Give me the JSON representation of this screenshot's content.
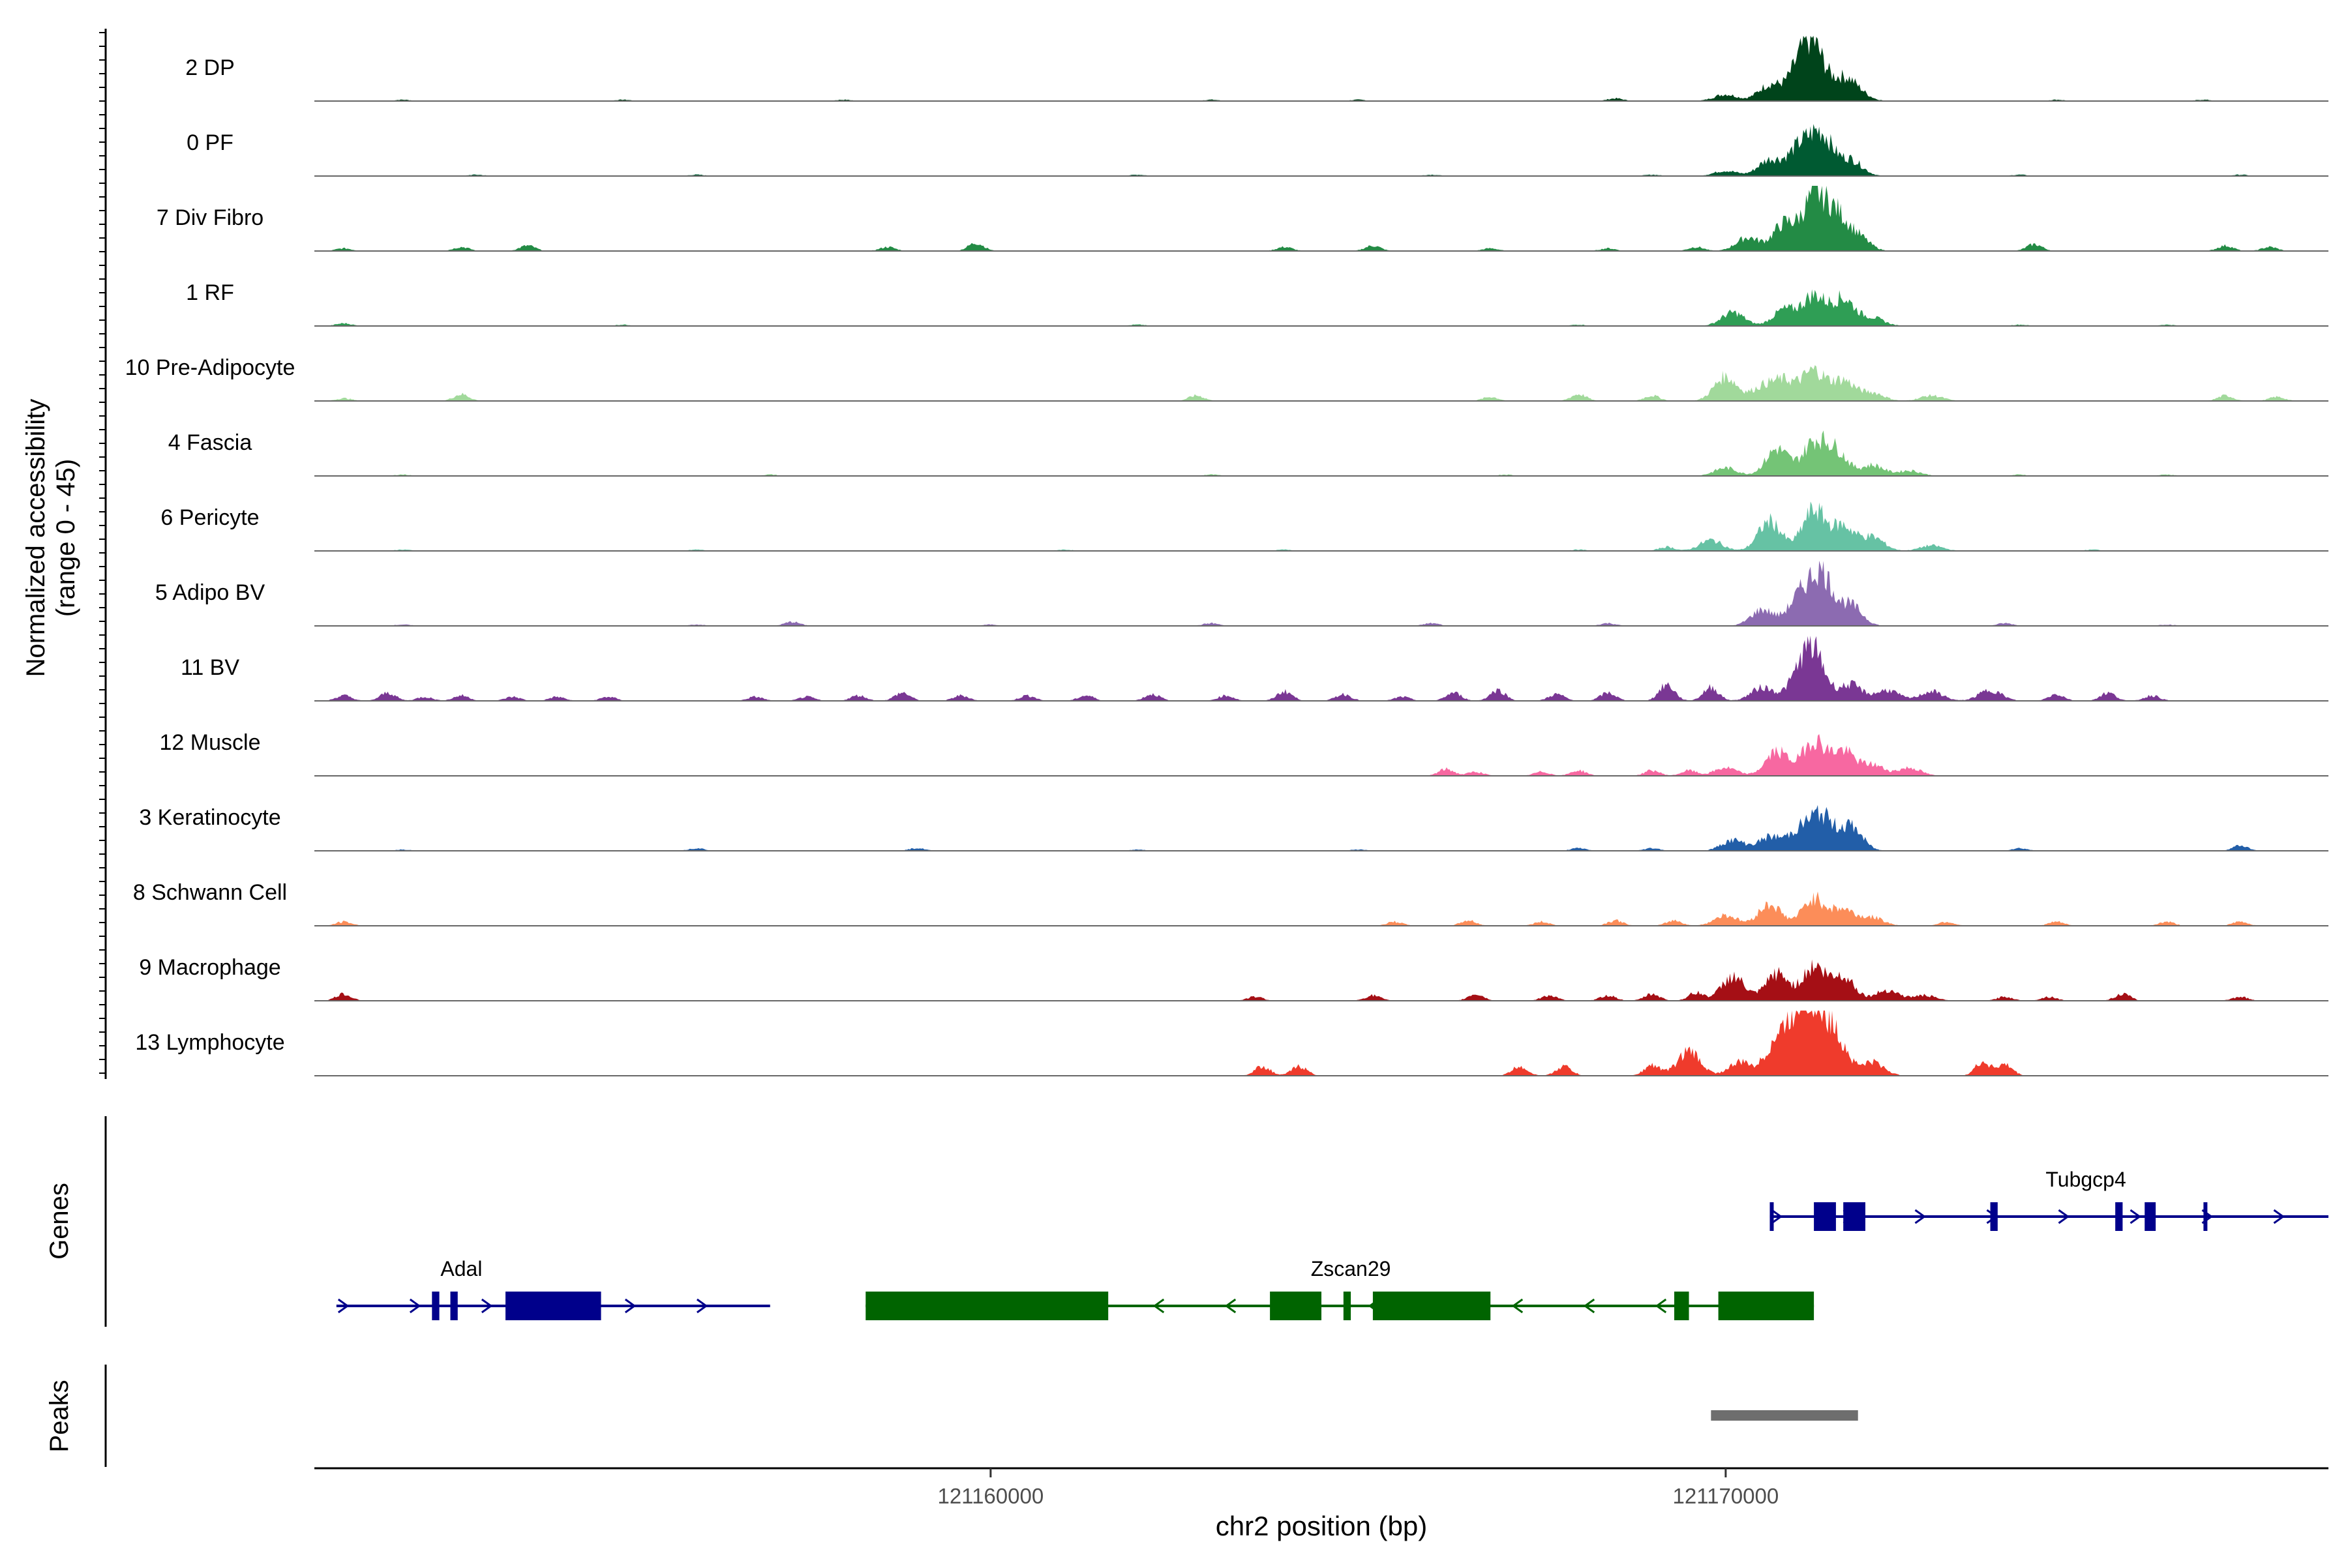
{
  "chart_data": {
    "type": "area",
    "title": "",
    "ylabel_line1": "Normalized accessibility",
    "ylabel_line2": "(range 0 - 45)",
    "ylim": [
      0,
      45
    ],
    "xlabel": "chr2 position (bp)",
    "xlim": [
      121150800,
      121178200
    ],
    "x_ticks": [
      {
        "value": 121160000,
        "label": "121160000"
      },
      {
        "value": 121170000,
        "label": "121170000"
      }
    ],
    "tracks": [
      {
        "name": "2 DP",
        "color": "#00441b",
        "peaks": [
          [
            121170000,
            5
          ],
          [
            121170600,
            12
          ],
          [
            121171000,
            20
          ],
          [
            121171200,
            35
          ],
          [
            121171600,
            15
          ],
          [
            121171800,
            5
          ]
        ],
        "noise": [
          [
            121152000,
            1
          ],
          [
            121155000,
            1
          ],
          [
            121158000,
            1
          ],
          [
            121163000,
            1
          ],
          [
            121165000,
            1
          ],
          [
            121168500,
            2
          ],
          [
            121174500,
            1
          ],
          [
            121176500,
            1
          ]
        ]
      },
      {
        "name": "0 PF",
        "color": "#005a32",
        "peaks": [
          [
            121170000,
            4
          ],
          [
            121170600,
            12
          ],
          [
            121171000,
            20
          ],
          [
            121171300,
            30
          ],
          [
            121171700,
            12
          ]
        ],
        "noise": [
          [
            121153000,
            1
          ],
          [
            121156000,
            1
          ],
          [
            121162000,
            1
          ],
          [
            121166000,
            1
          ],
          [
            121169000,
            1
          ],
          [
            121174000,
            1
          ],
          [
            121177000,
            1
          ]
        ]
      },
      {
        "name": "7 Div Fibro",
        "color": "#238b45",
        "peaks": [
          [
            121170300,
            10
          ],
          [
            121170800,
            20
          ],
          [
            121171200,
            38
          ],
          [
            121171500,
            25
          ],
          [
            121171800,
            10
          ]
        ],
        "noise": [
          [
            121151200,
            2
          ],
          [
            121152800,
            3
          ],
          [
            121153700,
            4
          ],
          [
            121158600,
            3
          ],
          [
            121159800,
            6
          ],
          [
            121164000,
            3
          ],
          [
            121165200,
            4
          ],
          [
            121166800,
            2
          ],
          [
            121168400,
            2
          ],
          [
            121169600,
            3
          ],
          [
            121174200,
            5
          ],
          [
            121176800,
            4
          ],
          [
            121177400,
            3
          ]
        ]
      },
      {
        "name": "1 RF",
        "color": "#2f9e55",
        "peaks": [
          [
            121170100,
            10
          ],
          [
            121170800,
            12
          ],
          [
            121171200,
            22
          ],
          [
            121171600,
            20
          ],
          [
            121172000,
            6
          ]
        ],
        "noise": [
          [
            121151200,
            2
          ],
          [
            121155000,
            1
          ],
          [
            121162000,
            1
          ],
          [
            121168000,
            1
          ],
          [
            121174000,
            1
          ],
          [
            121176000,
            1
          ]
        ]
      },
      {
        "name": "10 Pre-Adipocyte",
        "color": "#a1d99b",
        "peaks": [
          [
            121170000,
            18
          ],
          [
            121170500,
            10
          ],
          [
            121170800,
            14
          ],
          [
            121171200,
            22
          ],
          [
            121171600,
            15
          ],
          [
            121172000,
            6
          ],
          [
            121172800,
            4
          ]
        ],
        "noise": [
          [
            121151200,
            2
          ],
          [
            121152800,
            5
          ],
          [
            121162800,
            4
          ],
          [
            121166800,
            3
          ],
          [
            121168000,
            5
          ],
          [
            121169000,
            4
          ],
          [
            121176800,
            4
          ],
          [
            121177500,
            3
          ]
        ]
      },
      {
        "name": "4 Fascia",
        "color": "#74c476",
        "peaks": [
          [
            121170000,
            6
          ],
          [
            121170700,
            20
          ],
          [
            121171200,
            24
          ],
          [
            121171500,
            18
          ],
          [
            121172000,
            8
          ],
          [
            121172500,
            4
          ]
        ],
        "noise": [
          [
            121152000,
            1
          ],
          [
            121157000,
            1
          ],
          [
            121163000,
            1
          ],
          [
            121167000,
            1
          ],
          [
            121174000,
            1
          ],
          [
            121176000,
            1
          ]
        ]
      },
      {
        "name": "6 Pericyte",
        "color": "#66c2a4",
        "peaks": [
          [
            121169800,
            8
          ],
          [
            121170600,
            22
          ],
          [
            121171200,
            30
          ],
          [
            121171600,
            18
          ],
          [
            121172000,
            10
          ],
          [
            121172800,
            4
          ]
        ],
        "noise": [
          [
            121152000,
            1
          ],
          [
            121156000,
            1
          ],
          [
            121161000,
            1
          ],
          [
            121164000,
            1
          ],
          [
            121168000,
            1
          ],
          [
            121169200,
            3
          ],
          [
            121175000,
            1
          ]
        ]
      },
      {
        "name": "5 Adipo BV",
        "color": "#8c6bb1",
        "peaks": [
          [
            121170500,
            12
          ],
          [
            121171000,
            20
          ],
          [
            121171300,
            38
          ],
          [
            121171700,
            15
          ]
        ],
        "noise": [
          [
            121152000,
            1
          ],
          [
            121156000,
            1
          ],
          [
            121157300,
            3
          ],
          [
            121160000,
            1
          ],
          [
            121163000,
            2
          ],
          [
            121166000,
            2
          ],
          [
            121168400,
            2
          ],
          [
            121173800,
            2
          ],
          [
            121176000,
            1
          ]
        ]
      },
      {
        "name": "11 BV",
        "color": "#7a3794",
        "peaks": [
          [
            121170500,
            10
          ],
          [
            121171000,
            15
          ],
          [
            121171200,
            33
          ],
          [
            121171700,
            12
          ],
          [
            121172200,
            8
          ],
          [
            121172800,
            7
          ],
          [
            121173600,
            8
          ]
        ],
        "noise": [
          [
            121151200,
            4
          ],
          [
            121151800,
            6
          ],
          [
            121152300,
            3
          ],
          [
            121152800,
            4
          ],
          [
            121153500,
            3
          ],
          [
            121154100,
            3
          ],
          [
            121154800,
            3
          ],
          [
            121156800,
            3
          ],
          [
            121157500,
            3
          ],
          [
            121158200,
            4
          ],
          [
            121158800,
            6
          ],
          [
            121159600,
            4
          ],
          [
            121160500,
            4
          ],
          [
            121161300,
            4
          ],
          [
            121162200,
            5
          ],
          [
            121163200,
            4
          ],
          [
            121164000,
            7
          ],
          [
            121164800,
            5
          ],
          [
            121165600,
            3
          ],
          [
            121166300,
            6
          ],
          [
            121166900,
            8
          ],
          [
            121167700,
            5
          ],
          [
            121168400,
            6
          ],
          [
            121169200,
            12
          ],
          [
            121169800,
            10
          ],
          [
            121174500,
            5
          ],
          [
            121175200,
            6
          ],
          [
            121175800,
            4
          ]
        ]
      },
      {
        "name": "12 Muscle",
        "color": "#f768a1",
        "peaks": [
          [
            121170000,
            6
          ],
          [
            121170700,
            18
          ],
          [
            121171200,
            26
          ],
          [
            121171600,
            18
          ],
          [
            121172000,
            8
          ],
          [
            121172500,
            6
          ]
        ],
        "noise": [
          [
            121166200,
            5
          ],
          [
            121166600,
            3
          ],
          [
            121167500,
            3
          ],
          [
            121168000,
            4
          ],
          [
            121169000,
            4
          ],
          [
            121169500,
            4
          ]
        ]
      },
      {
        "name": "3 Keratinocyte",
        "color": "#225ea8",
        "peaks": [
          [
            121170100,
            8
          ],
          [
            121170600,
            10
          ],
          [
            121171000,
            14
          ],
          [
            121171300,
            25
          ],
          [
            121171700,
            18
          ]
        ],
        "noise": [
          [
            121152000,
            1
          ],
          [
            121156000,
            2
          ],
          [
            121159000,
            2
          ],
          [
            121162000,
            1
          ],
          [
            121165000,
            1
          ],
          [
            121168000,
            2
          ],
          [
            121169000,
            2
          ],
          [
            121174000,
            2
          ],
          [
            121177000,
            4
          ]
        ]
      },
      {
        "name": "8 Schwann Cell",
        "color": "#fc8d59",
        "peaks": [
          [
            121170000,
            8
          ],
          [
            121170600,
            16
          ],
          [
            121171200,
            20
          ],
          [
            121171600,
            12
          ],
          [
            121172000,
            6
          ]
        ],
        "noise": [
          [
            121151200,
            3
          ],
          [
            121165500,
            3
          ],
          [
            121166500,
            4
          ],
          [
            121167500,
            3
          ],
          [
            121168500,
            4
          ],
          [
            121169300,
            4
          ],
          [
            121173000,
            3
          ],
          [
            121174500,
            3
          ],
          [
            121176000,
            3
          ],
          [
            121177000,
            3
          ]
        ]
      },
      {
        "name": "9 Macrophage",
        "color": "#a50f15",
        "peaks": [
          [
            121170100,
            18
          ],
          [
            121170700,
            20
          ],
          [
            121171200,
            25
          ],
          [
            121171600,
            18
          ],
          [
            121172200,
            8
          ],
          [
            121172700,
            4
          ]
        ],
        "noise": [
          [
            121151200,
            5
          ],
          [
            121163600,
            3
          ],
          [
            121165200,
            4
          ],
          [
            121166600,
            5
          ],
          [
            121167600,
            4
          ],
          [
            121168400,
            4
          ],
          [
            121169000,
            5
          ],
          [
            121169600,
            6
          ],
          [
            121173800,
            3
          ],
          [
            121174400,
            3
          ],
          [
            121175400,
            5
          ],
          [
            121177000,
            3
          ]
        ]
      },
      {
        "name": "13 Lymphocyte",
        "color": "#ef3b2c",
        "peaks": [
          [
            121169500,
            18
          ],
          [
            121170200,
            10
          ],
          [
            121170700,
            25
          ],
          [
            121171000,
            35
          ],
          [
            121171200,
            40
          ],
          [
            121171500,
            28
          ],
          [
            121172000,
            10
          ]
        ],
        "noise": [
          [
            121163700,
            7
          ],
          [
            121164200,
            7
          ],
          [
            121167200,
            7
          ],
          [
            121167800,
            7
          ],
          [
            121169000,
            8
          ],
          [
            121173500,
            10
          ],
          [
            121173800,
            8
          ]
        ]
      }
    ],
    "genes_label": "Genes",
    "peaks_label": "Peaks",
    "genes": [
      {
        "name": "Adal",
        "strand": "+",
        "color": "#00008b",
        "start": 121151100,
        "end": 121157000,
        "row": 2,
        "exons": [
          [
            121152400,
            121152500
          ],
          [
            121152650,
            121152750
          ],
          [
            121153400,
            121154700
          ]
        ]
      },
      {
        "name": "Zscan29",
        "strand": "-",
        "color": "#006400",
        "start": 121158300,
        "end": 121171200,
        "row": 2,
        "exons": [
          [
            121158300,
            121161600
          ],
          [
            121163800,
            121164500
          ],
          [
            121164800,
            121164900
          ],
          [
            121165200,
            121166800
          ],
          [
            121169300,
            121169500
          ],
          [
            121169900,
            121171200
          ]
        ]
      },
      {
        "name": "Tubgcp4",
        "strand": "+",
        "color": "#00008b",
        "start": 121170600,
        "end": 121178200,
        "row": 1,
        "exons": [
          [
            121170600,
            121170650
          ],
          [
            121171200,
            121171500
          ],
          [
            121171600,
            121171900
          ],
          [
            121173600,
            121173700
          ],
          [
            121175300,
            121175400
          ],
          [
            121175700,
            121175850
          ],
          [
            121176500,
            121176550
          ]
        ]
      }
    ],
    "peak_regions": [
      [
        121169800,
        121171800
      ]
    ]
  }
}
